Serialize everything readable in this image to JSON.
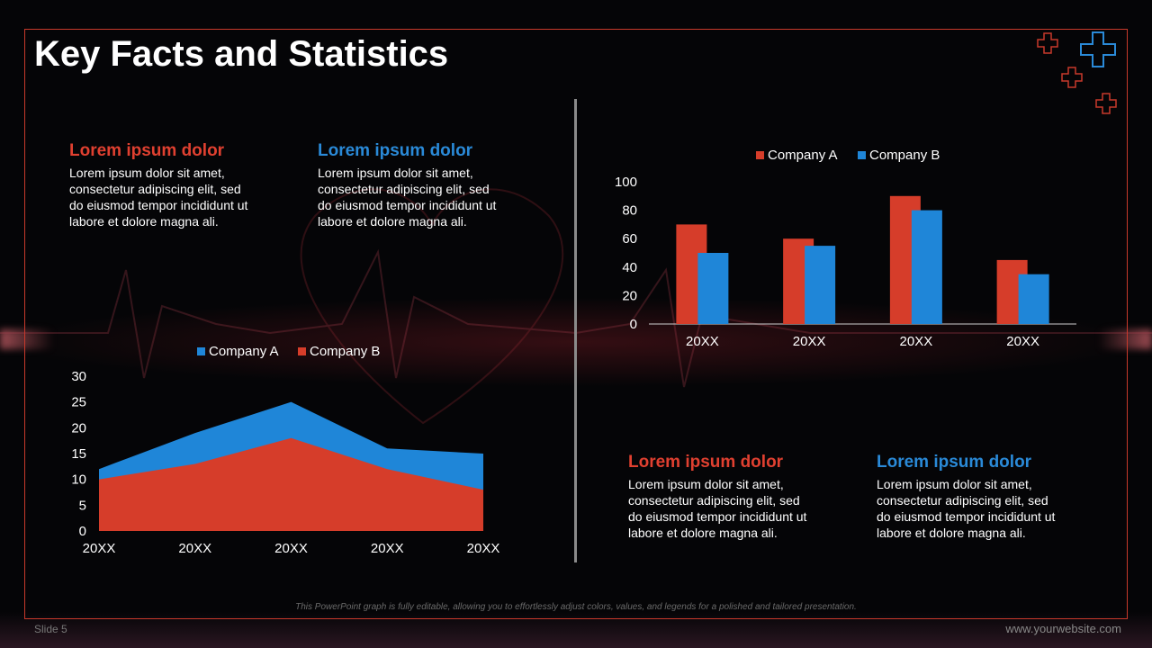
{
  "slide": {
    "title": "Key Facts and Statistics",
    "footer_note": "This PowerPoint graph is fully editable, allowing you to effortlessly adjust colors, values, and legends for a polished and tailored presentation.",
    "slide_number": "Slide 5",
    "website": "www.yourwebsite.com"
  },
  "colors": {
    "red": "#d63d2a",
    "blue": "#1f86d8",
    "accent_red": "#e04030",
    "accent_blue": "#2a8ad8"
  },
  "icons": [
    "plus-outline-icon"
  ],
  "text_blocks": [
    {
      "heading": "Lorem ipsum dolor",
      "body": "Lorem ipsum dolor sit amet, consectetur adipiscing elit, sed do eiusmod tempor incididunt ut labore et dolore magna ali."
    },
    {
      "heading": "Lorem ipsum dolor",
      "body": "Lorem ipsum dolor sit amet, consectetur adipiscing elit, sed do eiusmod tempor incididunt ut labore et dolore magna ali."
    },
    {
      "heading": "Lorem ipsum dolor",
      "body": "Lorem ipsum dolor sit amet, consectetur adipiscing elit, sed do eiusmod tempor incididunt ut labore et dolore magna ali."
    },
    {
      "heading": "Lorem ipsum dolor",
      "body": "Lorem ipsum dolor sit amet, consectetur adipiscing elit, sed do eiusmod tempor incididunt ut labore et dolore magna ali."
    }
  ],
  "chart_data": [
    {
      "type": "bar",
      "categories": [
        "20XX",
        "20XX",
        "20XX",
        "20XX"
      ],
      "series": [
        {
          "name": "Company A",
          "values": [
            70,
            60,
            90,
            45
          ]
        },
        {
          "name": "Company B",
          "values": [
            50,
            55,
            80,
            35
          ]
        }
      ],
      "ylim": [
        0,
        100
      ],
      "yticks": [
        0,
        20,
        40,
        60,
        80,
        100
      ],
      "legend": "top",
      "grid": false
    },
    {
      "type": "area",
      "categories": [
        "20XX",
        "20XX",
        "20XX",
        "20XX",
        "20XX"
      ],
      "series": [
        {
          "name": "Company A",
          "values": [
            12,
            19,
            25,
            16,
            15
          ]
        },
        {
          "name": "Company B",
          "values": [
            10,
            13,
            18,
            12,
            8
          ]
        }
      ],
      "ylim": [
        0,
        30
      ],
      "yticks": [
        0,
        5,
        10,
        15,
        20,
        25,
        30
      ],
      "legend": "top",
      "grid": false
    }
  ]
}
